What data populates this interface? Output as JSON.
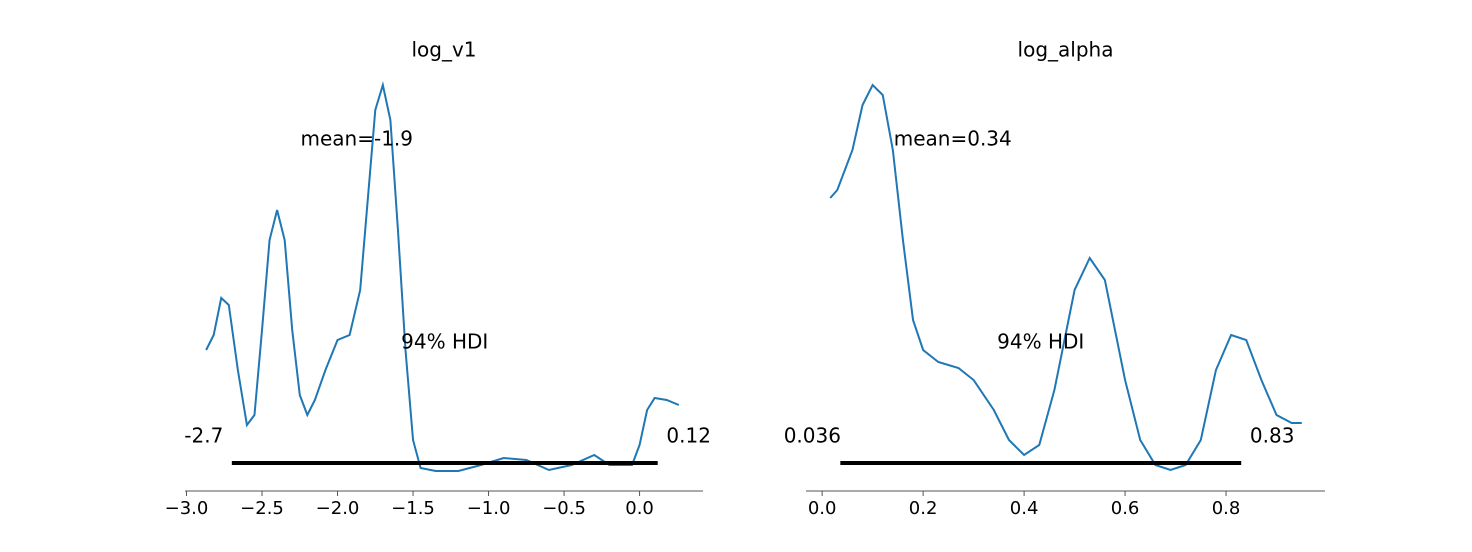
{
  "chart_data": [
    {
      "type": "line",
      "title": "log_v1",
      "color": "#1f77b4",
      "x": [
        -2.87,
        -2.82,
        -2.77,
        -2.72,
        -2.66,
        -2.6,
        -2.55,
        -2.5,
        -2.45,
        -2.4,
        -2.35,
        -2.3,
        -2.25,
        -2.2,
        -2.15,
        -2.08,
        -2.0,
        -1.92,
        -1.85,
        -1.8,
        -1.75,
        -1.7,
        -1.65,
        -1.6,
        -1.55,
        -1.5,
        -1.45,
        -1.35,
        -1.2,
        -1.05,
        -0.9,
        -0.75,
        -0.6,
        -0.45,
        -0.3,
        -0.2,
        -0.05,
        0.0,
        0.05,
        0.1,
        0.18,
        0.26
      ],
      "values": [
        1.21,
        1.36,
        1.73,
        1.66,
        1.01,
        0.46,
        0.56,
        1.41,
        2.31,
        2.61,
        2.31,
        1.41,
        0.76,
        0.56,
        0.71,
        1.01,
        1.31,
        1.36,
        1.81,
        2.71,
        3.61,
        3.86,
        3.51,
        2.41,
        1.21,
        0.31,
        0.03,
        0.0,
        0.0,
        0.06,
        0.13,
        0.11,
        0.01,
        0.06,
        0.16,
        0.06,
        0.06,
        0.26,
        0.61,
        0.73,
        0.71,
        0.66
      ],
      "xlim": [
        -3.01,
        0.42
      ],
      "ylim": [
        -0.2,
        4.05
      ],
      "xticks": [
        {
          "value": -3.0,
          "label": "−3.0"
        },
        {
          "value": -2.5,
          "label": "−2.5"
        },
        {
          "value": -2.0,
          "label": "−2.0"
        },
        {
          "value": -1.5,
          "label": "−1.5"
        },
        {
          "value": -1.0,
          "label": "−1.0"
        },
        {
          "value": -0.5,
          "label": "−0.5"
        },
        {
          "value": 0.0,
          "label": "0.0"
        }
      ],
      "mean_label": "mean=-1.9",
      "hdi_label": "94% HDI",
      "hdi": [
        -2.7,
        0.12
      ]
    },
    {
      "type": "line",
      "title": "log_alpha",
      "color": "#1f77b4",
      "x": [
        0.016,
        0.03,
        0.06,
        0.08,
        0.1,
        0.12,
        0.14,
        0.16,
        0.18,
        0.2,
        0.23,
        0.27,
        0.3,
        0.34,
        0.37,
        0.4,
        0.43,
        0.46,
        0.5,
        0.53,
        0.56,
        0.6,
        0.63,
        0.66,
        0.69,
        0.72,
        0.75,
        0.78,
        0.81,
        0.84,
        0.87,
        0.9,
        0.93,
        0.95
      ],
      "values": [
        2.73,
        2.81,
        3.21,
        3.66,
        3.86,
        3.76,
        3.21,
        2.31,
        1.51,
        1.21,
        1.09,
        1.03,
        0.91,
        0.61,
        0.31,
        0.16,
        0.26,
        0.81,
        1.81,
        2.13,
        1.91,
        0.91,
        0.31,
        0.06,
        0.01,
        0.06,
        0.31,
        1.01,
        1.36,
        1.31,
        0.91,
        0.56,
        0.48,
        0.48
      ],
      "xlim": [
        -0.032,
        0.996
      ],
      "ylim": [
        -0.2,
        4.05
      ],
      "xticks": [
        {
          "value": 0.0,
          "label": "0.0"
        },
        0.2,
        0.4,
        0.6,
        0.8
      ],
      "mean_label": "mean=0.34",
      "hdi_label": "94% HDI",
      "hdi": [
        0.036,
        0.83
      ]
    }
  ]
}
